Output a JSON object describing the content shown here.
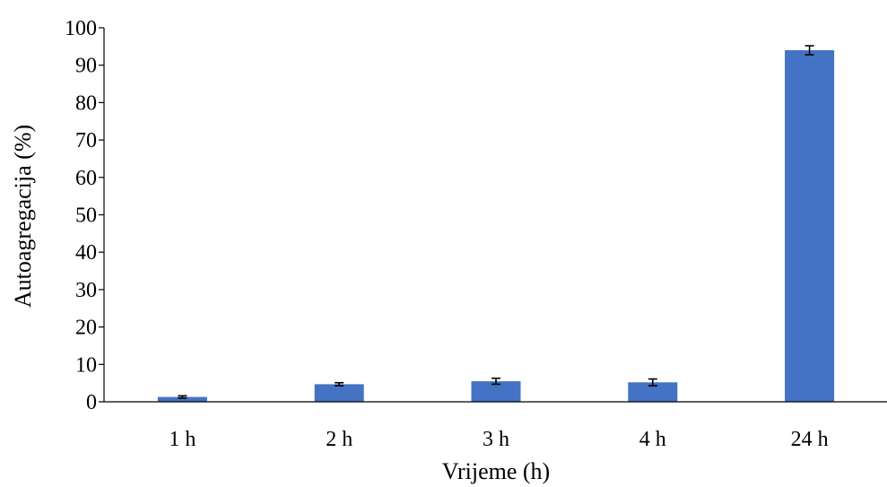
{
  "chart_data": {
    "type": "bar",
    "title": "",
    "xlabel": "Vrijeme (h)",
    "ylabel": "Autoagregacija (%)",
    "categories": [
      "1 h",
      "2 h",
      "3 h",
      "4 h",
      "24 h"
    ],
    "values": [
      1.3,
      4.7,
      5.5,
      5.2,
      94.0
    ],
    "errors": [
      0.3,
      0.4,
      0.8,
      0.9,
      1.2
    ],
    "ylim": [
      0,
      100
    ],
    "yticks": [
      0,
      10,
      20,
      30,
      40,
      50,
      60,
      70,
      80,
      90,
      100
    ],
    "grid": false,
    "legend": "none",
    "bar_color": "#4472C4",
    "error_bar_color": "#000000",
    "axis_color": "#000000"
  }
}
